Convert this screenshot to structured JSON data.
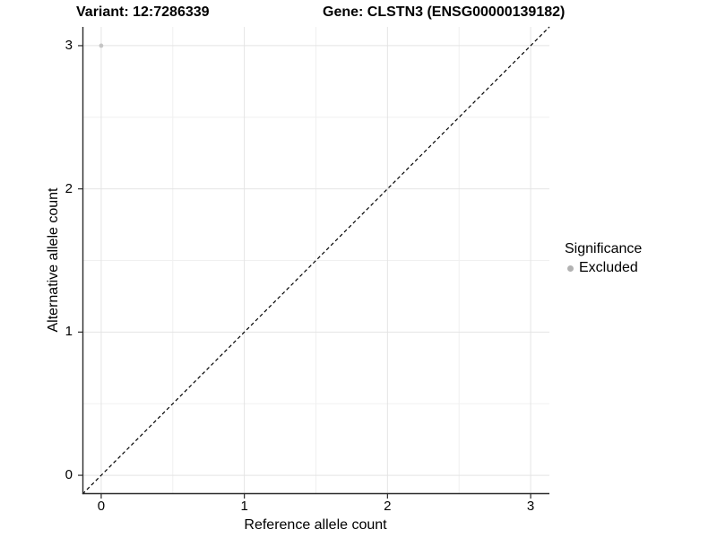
{
  "chart_data": {
    "type": "scatter",
    "titles": [
      "Variant: 12:7286339",
      "Gene: CLSTN3 (ENSG00000139182)"
    ],
    "xlabel": "Reference allele count",
    "ylabel": "Alternative allele count",
    "xlim": [
      -0.131,
      3.131
    ],
    "ylim": [
      -0.131,
      3.131
    ],
    "x_ticks": [
      0,
      1,
      2,
      3
    ],
    "y_ticks": [
      0,
      1,
      2,
      3
    ],
    "minor_ticks": [
      0.5,
      1.5,
      2.5
    ],
    "grid": true,
    "reference_line": {
      "style": "dashed",
      "from_xy": [
        -0.131,
        -0.131
      ],
      "to_xy": [
        3.131,
        3.131
      ],
      "color": "#000000"
    },
    "series": [
      {
        "name": "Excluded",
        "color": "#c5c5c5",
        "points": [
          {
            "x": 0,
            "y": 3
          }
        ]
      }
    ],
    "legend": {
      "title": "Significance",
      "position": "right",
      "entries": [
        {
          "label": "Excluded",
          "color": "#b2b2b2"
        }
      ]
    },
    "colors": {
      "axis": "#2b2b2b",
      "grid_major": "#e4e4e4",
      "grid_minor": "#f0f0f0",
      "background": "#ffffff",
      "text": "#000000"
    }
  }
}
